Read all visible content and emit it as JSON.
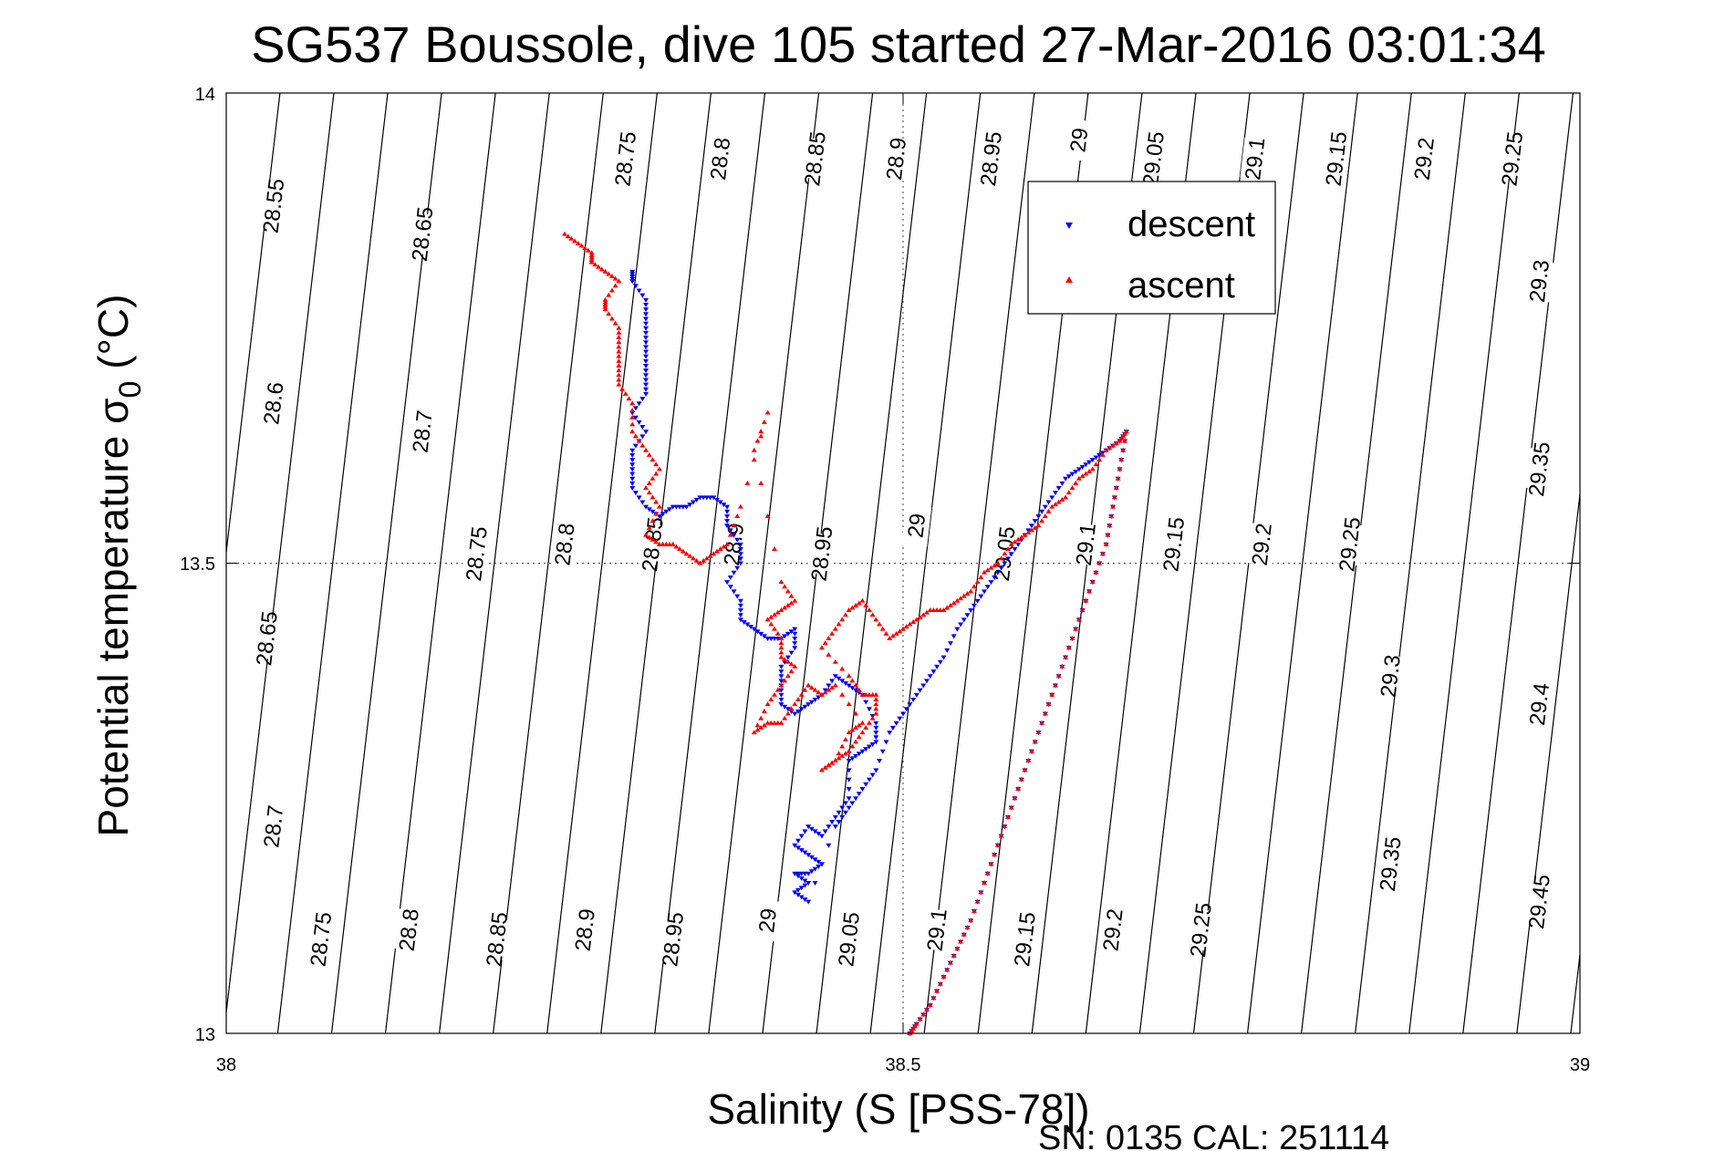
{
  "chart_data": {
    "type": "scatter",
    "title": "SG537 Boussole, dive 105 started 27-Mar-2016 03:01:34",
    "xlabel": "Salinity (S [PSS-78])",
    "ylabel_main": "Potential temperature σ",
    "ylabel_sub": "0",
    "ylabel_unit": " (°C)",
    "xlim": [
      38,
      39
    ],
    "ylim": [
      13,
      14
    ],
    "xticks": [
      "38",
      "38.5",
      "39"
    ],
    "yticks": [
      "13",
      "13.5",
      "14"
    ],
    "grid": "dotted at ticks",
    "legend_position": "top-right",
    "footer": "SN: 0135  CAL: 251114",
    "colors": {
      "descent": "#0000ff",
      "ascent": "#ff0000",
      "contour": "#000000"
    },
    "density_contours": [
      {
        "sigma": "28.55",
        "label_at": [
          38.035,
          13.88
        ]
      },
      {
        "sigma": "28.6",
        "label_at": [
          38.035,
          13.67
        ]
      },
      {
        "sigma": "28.65",
        "label_at": [
          38.145,
          13.85
        ]
      },
      {
        "sigma": "28.65",
        "label_at": [
          38.03,
          13.42
        ]
      },
      {
        "sigma": "28.7",
        "label_at": [
          38.145,
          13.64
        ]
      },
      {
        "sigma": "28.7",
        "label_at": [
          38.035,
          13.22
        ]
      },
      {
        "sigma": "28.75",
        "label_at": [
          38.295,
          13.93
        ]
      },
      {
        "sigma": "28.75",
        "label_at": [
          38.185,
          13.51
        ]
      },
      {
        "sigma": "28.75",
        "label_at": [
          38.07,
          13.1
        ]
      },
      {
        "sigma": "28.8",
        "label_at": [
          38.365,
          13.93
        ]
      },
      {
        "sigma": "28.8",
        "label_at": [
          38.25,
          13.52
        ]
      },
      {
        "sigma": "28.8",
        "label_at": [
          38.135,
          13.11
        ]
      },
      {
        "sigma": "28.85",
        "label_at": [
          38.435,
          13.93
        ]
      },
      {
        "sigma": "28.85",
        "label_at": [
          38.315,
          13.52
        ]
      },
      {
        "sigma": "28.85",
        "label_at": [
          38.2,
          13.1
        ]
      },
      {
        "sigma": "28.9",
        "label_at": [
          38.495,
          13.93
        ]
      },
      {
        "sigma": "28.9",
        "label_at": [
          38.375,
          13.52
        ]
      },
      {
        "sigma": "28.9",
        "label_at": [
          38.265,
          13.11
        ]
      },
      {
        "sigma": "28.95",
        "label_at": [
          38.565,
          13.93
        ]
      },
      {
        "sigma": "28.95",
        "label_at": [
          38.44,
          13.51
        ]
      },
      {
        "sigma": "28.95",
        "label_at": [
          38.33,
          13.1
        ]
      },
      {
        "sigma": "29",
        "label_at": [
          38.63,
          13.95
        ]
      },
      {
        "sigma": "29",
        "label_at": [
          38.51,
          13.54
        ]
      },
      {
        "sigma": "29",
        "label_at": [
          38.4,
          13.12
        ]
      },
      {
        "sigma": "29.05",
        "label_at": [
          38.685,
          13.93
        ]
      },
      {
        "sigma": "29.05",
        "label_at": [
          38.575,
          13.51
        ]
      },
      {
        "sigma": "29.05",
        "label_at": [
          38.46,
          13.1
        ]
      },
      {
        "sigma": "29.1",
        "label_at": [
          38.76,
          13.93
        ]
      },
      {
        "sigma": "29.1",
        "label_at": [
          38.635,
          13.52
        ]
      },
      {
        "sigma": "29.1",
        "label_at": [
          38.525,
          13.11
        ]
      },
      {
        "sigma": "29.15",
        "label_at": [
          38.82,
          13.93
        ]
      },
      {
        "sigma": "29.15",
        "label_at": [
          38.7,
          13.52
        ]
      },
      {
        "sigma": "29.15",
        "label_at": [
          38.59,
          13.1
        ]
      },
      {
        "sigma": "29.2",
        "label_at": [
          38.885,
          13.93
        ]
      },
      {
        "sigma": "29.2",
        "label_at": [
          38.765,
          13.52
        ]
      },
      {
        "sigma": "29.2",
        "label_at": [
          38.655,
          13.11
        ]
      },
      {
        "sigma": "29.25",
        "label_at": [
          38.95,
          13.93
        ]
      },
      {
        "sigma": "29.25",
        "label_at": [
          38.83,
          13.52
        ]
      },
      {
        "sigma": "29.25",
        "label_at": [
          38.72,
          13.11
        ]
      },
      {
        "sigma": "29.3",
        "label_at": [
          38.97,
          13.8
        ]
      },
      {
        "sigma": "29.3",
        "label_at": [
          38.86,
          13.38
        ]
      },
      {
        "sigma": "29.35",
        "label_at": [
          38.97,
          13.6
        ]
      },
      {
        "sigma": "29.35",
        "label_at": [
          38.86,
          13.18
        ]
      },
      {
        "sigma": "29.4",
        "label_at": [
          38.97,
          13.35
        ]
      },
      {
        "sigma": "29.45",
        "label_at": [
          38.97,
          13.14
        ]
      }
    ],
    "series": [
      {
        "name": "descent",
        "points": [
          [
            38.3,
            13.81
          ],
          [
            38.3,
            13.8
          ],
          [
            38.31,
            13.78
          ],
          [
            38.31,
            13.76
          ],
          [
            38.31,
            13.74
          ],
          [
            38.31,
            13.72
          ],
          [
            38.31,
            13.7
          ],
          [
            38.31,
            13.68
          ],
          [
            38.3,
            13.66
          ],
          [
            38.31,
            13.64
          ],
          [
            38.3,
            13.62
          ],
          [
            38.3,
            13.6
          ],
          [
            38.3,
            13.58
          ],
          [
            38.31,
            13.56
          ],
          [
            38.32,
            13.55
          ],
          [
            38.33,
            13.56
          ],
          [
            38.34,
            13.56
          ],
          [
            38.35,
            13.57
          ],
          [
            38.36,
            13.57
          ],
          [
            38.37,
            13.56
          ],
          [
            38.37,
            13.54
          ],
          [
            38.38,
            13.52
          ],
          [
            38.38,
            13.5
          ],
          [
            38.37,
            13.48
          ],
          [
            38.38,
            13.46
          ],
          [
            38.38,
            13.44
          ],
          [
            38.39,
            13.43
          ],
          [
            38.4,
            13.42
          ],
          [
            38.41,
            13.42
          ],
          [
            38.42,
            13.43
          ],
          [
            38.42,
            13.41
          ],
          [
            38.41,
            13.39
          ],
          [
            38.41,
            13.37
          ],
          [
            38.41,
            13.35
          ],
          [
            38.42,
            13.34
          ],
          [
            38.43,
            13.35
          ],
          [
            38.44,
            13.36
          ],
          [
            38.45,
            13.38
          ],
          [
            38.46,
            13.37
          ],
          [
            38.47,
            13.36
          ],
          [
            38.48,
            13.33
          ],
          [
            38.48,
            13.31
          ],
          [
            38.47,
            13.3
          ],
          [
            38.46,
            13.29
          ],
          [
            38.46,
            13.25
          ],
          [
            38.45,
            13.23
          ],
          [
            38.44,
            13.21
          ],
          [
            38.43,
            13.22
          ],
          [
            38.42,
            13.2
          ],
          [
            38.43,
            13.19
          ],
          [
            38.44,
            13.18
          ],
          [
            38.43,
            13.17
          ],
          [
            38.42,
            13.17
          ],
          [
            38.43,
            13.16
          ],
          [
            38.42,
            13.15
          ],
          [
            38.43,
            13.14
          ],
          [
            38.45,
            13.22
          ],
          [
            38.46,
            13.24
          ],
          [
            38.47,
            13.26
          ],
          [
            38.48,
            13.28
          ],
          [
            38.49,
            13.32
          ],
          [
            38.5,
            13.34
          ],
          [
            38.51,
            13.36
          ],
          [
            38.52,
            13.38
          ],
          [
            38.53,
            13.4
          ],
          [
            38.54,
            13.43
          ],
          [
            38.55,
            13.45
          ],
          [
            38.56,
            13.47
          ],
          [
            38.57,
            13.49
          ],
          [
            38.58,
            13.51
          ],
          [
            38.59,
            13.53
          ],
          [
            38.6,
            13.55
          ],
          [
            38.61,
            13.57
          ],
          [
            38.62,
            13.59
          ],
          [
            38.63,
            13.6
          ],
          [
            38.64,
            13.61
          ],
          [
            38.65,
            13.62
          ],
          [
            38.66,
            13.63
          ],
          [
            38.665,
            13.64
          ],
          [
            38.66,
            13.6
          ],
          [
            38.655,
            13.56
          ],
          [
            38.65,
            13.52
          ],
          [
            38.64,
            13.48
          ],
          [
            38.63,
            13.44
          ],
          [
            38.62,
            13.4
          ],
          [
            38.61,
            13.36
          ],
          [
            38.6,
            13.32
          ],
          [
            38.59,
            13.28
          ],
          [
            38.58,
            13.24
          ],
          [
            38.57,
            13.2
          ],
          [
            38.56,
            13.16
          ],
          [
            38.55,
            13.12
          ],
          [
            38.54,
            13.09
          ],
          [
            38.53,
            13.06
          ],
          [
            38.52,
            13.03
          ],
          [
            38.51,
            13.01
          ],
          [
            38.505,
            13.0
          ]
        ]
      },
      {
        "name": "ascent",
        "points": [
          [
            38.505,
            13.0
          ],
          [
            38.51,
            13.01
          ],
          [
            38.52,
            13.03
          ],
          [
            38.53,
            13.06
          ],
          [
            38.54,
            13.09
          ],
          [
            38.55,
            13.12
          ],
          [
            38.56,
            13.16
          ],
          [
            38.57,
            13.2
          ],
          [
            38.58,
            13.24
          ],
          [
            38.59,
            13.28
          ],
          [
            38.6,
            13.32
          ],
          [
            38.61,
            13.36
          ],
          [
            38.62,
            13.4
          ],
          [
            38.63,
            13.44
          ],
          [
            38.64,
            13.48
          ],
          [
            38.65,
            13.52
          ],
          [
            38.655,
            13.56
          ],
          [
            38.66,
            13.6
          ],
          [
            38.665,
            13.64
          ],
          [
            38.66,
            13.63
          ],
          [
            38.65,
            13.62
          ],
          [
            38.64,
            13.6
          ],
          [
            38.63,
            13.59
          ],
          [
            38.62,
            13.57
          ],
          [
            38.61,
            13.56
          ],
          [
            38.6,
            13.54
          ],
          [
            38.59,
            13.53
          ],
          [
            38.58,
            13.52
          ],
          [
            38.57,
            13.5
          ],
          [
            38.56,
            13.49
          ],
          [
            38.55,
            13.47
          ],
          [
            38.54,
            13.46
          ],
          [
            38.53,
            13.45
          ],
          [
            38.52,
            13.45
          ],
          [
            38.51,
            13.44
          ],
          [
            38.5,
            13.43
          ],
          [
            38.49,
            13.42
          ],
          [
            38.48,
            13.44
          ],
          [
            38.47,
            13.46
          ],
          [
            38.46,
            13.45
          ],
          [
            38.45,
            13.43
          ],
          [
            38.44,
            13.41
          ],
          [
            38.46,
            13.38
          ],
          [
            38.47,
            13.36
          ],
          [
            38.48,
            13.36
          ],
          [
            38.48,
            13.34
          ],
          [
            38.47,
            13.32
          ],
          [
            38.46,
            13.3
          ],
          [
            38.45,
            13.29
          ],
          [
            38.44,
            13.28
          ],
          [
            38.45,
            13.29
          ],
          [
            38.46,
            13.32
          ],
          [
            38.47,
            13.33
          ],
          [
            38.45,
            13.37
          ],
          [
            38.44,
            13.36
          ],
          [
            38.43,
            13.37
          ],
          [
            38.42,
            13.35
          ],
          [
            38.41,
            13.33
          ],
          [
            38.4,
            13.33
          ],
          [
            38.39,
            13.32
          ],
          [
            38.4,
            13.35
          ],
          [
            38.41,
            13.37
          ],
          [
            38.42,
            13.39
          ],
          [
            38.41,
            13.4
          ],
          [
            38.41,
            13.42
          ],
          [
            38.4,
            13.44
          ],
          [
            38.41,
            13.45
          ],
          [
            38.42,
            13.46
          ],
          [
            38.41,
            13.48
          ],
          [
            38.39,
            13.62
          ],
          [
            38.4,
            13.66
          ],
          [
            38.38,
            13.56
          ],
          [
            38.37,
            13.52
          ],
          [
            38.36,
            13.51
          ],
          [
            38.35,
            13.5
          ],
          [
            38.34,
            13.51
          ],
          [
            38.33,
            13.52
          ],
          [
            38.32,
            13.52
          ],
          [
            38.31,
            13.53
          ],
          [
            38.32,
            13.56
          ],
          [
            38.31,
            13.58
          ],
          [
            38.32,
            13.6
          ],
          [
            38.31,
            13.62
          ],
          [
            38.3,
            13.64
          ],
          [
            38.3,
            13.67
          ],
          [
            38.29,
            13.69
          ],
          [
            38.29,
            13.71
          ],
          [
            38.29,
            13.73
          ],
          [
            38.29,
            13.75
          ],
          [
            38.28,
            13.77
          ],
          [
            38.28,
            13.78
          ],
          [
            38.29,
            13.8
          ],
          [
            38.28,
            13.81
          ],
          [
            38.27,
            13.82
          ],
          [
            38.27,
            13.83
          ],
          [
            38.26,
            13.84
          ],
          [
            38.25,
            13.85
          ]
        ]
      }
    ]
  }
}
